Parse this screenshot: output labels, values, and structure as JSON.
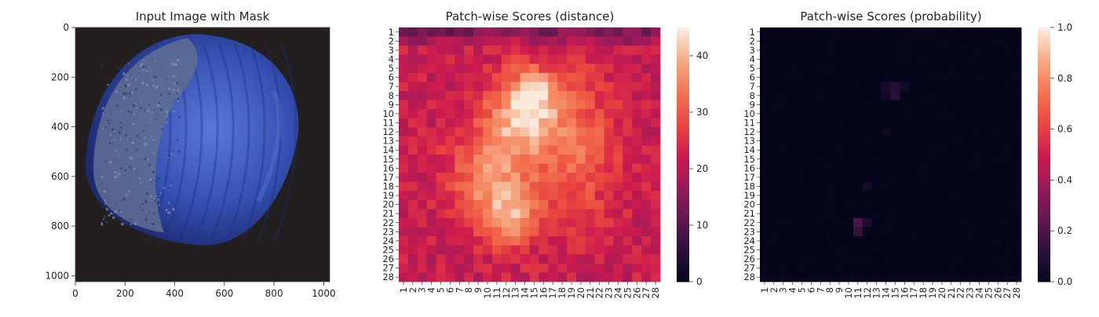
{
  "chart_data": [
    {
      "type": "image",
      "title": "Input Image with Mask",
      "xticks": [
        "0",
        "200",
        "400",
        "600",
        "800",
        "1000"
      ],
      "yticks": [
        "0",
        "200",
        "400",
        "600",
        "800",
        "1000"
      ],
      "xlim": [
        0,
        1024
      ],
      "ylim": [
        1024,
        0
      ],
      "image": {
        "background_color": "#231f1e",
        "object_color": "#3a55b8",
        "object_dark_color": "#1d2f7a",
        "object_highlight_color": "#6f8fe0",
        "object_shape": "hazelnut",
        "object_center": [
          515,
          510
        ],
        "defect_region_color": "#5f6f92"
      }
    },
    {
      "type": "heatmap",
      "title": "Patch-wise Scores (distance)",
      "rows": 28,
      "cols": 28,
      "row_labels": [
        "1",
        "2",
        "3",
        "4",
        "5",
        "6",
        "7",
        "8",
        "9",
        "10",
        "11",
        "12",
        "13",
        "14",
        "15",
        "16",
        "17",
        "18",
        "19",
        "20",
        "21",
        "22",
        "23",
        "24",
        "25",
        "26",
        "27",
        "28"
      ],
      "col_labels": [
        "1",
        "2",
        "3",
        "4",
        "5",
        "6",
        "7",
        "8",
        "9",
        "10",
        "11",
        "12",
        "13",
        "14",
        "15",
        "16",
        "17",
        "18",
        "19",
        "20",
        "21",
        "22",
        "23",
        "24",
        "25",
        "26",
        "27",
        "28"
      ],
      "colormap": "rocket",
      "vmin": 0,
      "vmax": 45,
      "colorbar_ticks": [
        "0",
        "10",
        "20",
        "30",
        "40"
      ],
      "values_model": {
        "base": 22,
        "blobs": [
          {
            "row": 10,
            "col": 14,
            "sigma_r": 3.2,
            "sigma_c": 2.8,
            "amp": 20
          },
          {
            "row": 7.5,
            "col": 15,
            "sigma_r": 1.6,
            "sigma_c": 1.4,
            "amp": 9
          },
          {
            "row": 17,
            "col": 10.5,
            "sigma_r": 3.5,
            "sigma_c": 3.2,
            "amp": 14
          },
          {
            "row": 21.5,
            "col": 12.5,
            "sigma_r": 2.2,
            "sigma_c": 2.0,
            "amp": 13
          },
          {
            "row": 14,
            "col": 20,
            "sigma_r": 5.5,
            "sigma_c": 3.0,
            "amp": 9
          }
        ],
        "top_row_darkening": 8
      }
    },
    {
      "type": "heatmap",
      "title": "Patch-wise Scores (probability)",
      "rows": 28,
      "cols": 28,
      "row_labels": [
        "1",
        "2",
        "3",
        "4",
        "5",
        "6",
        "7",
        "8",
        "9",
        "10",
        "11",
        "12",
        "13",
        "14",
        "15",
        "16",
        "17",
        "18",
        "19",
        "20",
        "21",
        "22",
        "23",
        "24",
        "25",
        "26",
        "27",
        "28"
      ],
      "col_labels": [
        "1",
        "2",
        "3",
        "4",
        "5",
        "6",
        "7",
        "8",
        "9",
        "10",
        "11",
        "12",
        "13",
        "14",
        "15",
        "16",
        "17",
        "18",
        "19",
        "20",
        "21",
        "22",
        "23",
        "24",
        "25",
        "26",
        "27",
        "28"
      ],
      "colormap": "rocket",
      "vmin": 0.0,
      "vmax": 1.0,
      "colorbar_ticks": [
        "0.0",
        "0.2",
        "0.4",
        "0.6",
        "0.8",
        "1.0"
      ],
      "values_model": {
        "base": 0.0,
        "hot_cells": [
          {
            "row": 22,
            "col": 11,
            "value": 0.2
          },
          {
            "row": 23,
            "col": 11,
            "value": 0.15
          },
          {
            "row": 22,
            "col": 12,
            "value": 0.08
          },
          {
            "row": 7,
            "col": 15,
            "value": 0.1
          },
          {
            "row": 8,
            "col": 15,
            "value": 0.12
          },
          {
            "row": 7,
            "col": 14,
            "value": 0.06
          },
          {
            "row": 7,
            "col": 16,
            "value": 0.05
          },
          {
            "row": 8,
            "col": 14,
            "value": 0.05
          },
          {
            "row": 18,
            "col": 12,
            "value": 0.06
          },
          {
            "row": 12,
            "col": 14,
            "value": 0.04
          }
        ]
      }
    }
  ]
}
